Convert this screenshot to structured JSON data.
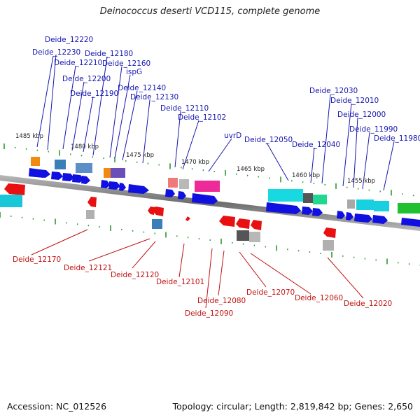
{
  "title": "Deinococcus deserti VCD115, complete genome",
  "accession_text": "Accession: NC_012526",
  "topology_text": "Topology: circular; Length: 2,819,842 bp; Genes: 2,650",
  "colors": {
    "top_label": "#1515b0",
    "bottom_label": "#c01010",
    "forward_gene": "#1010e0",
    "reverse_gene": "#e81010",
    "ruler_tick": "#2a9a2a",
    "backbone": "#8c8c8c"
  },
  "ruler_labels": [
    "1485 kbp",
    "1480 kbp",
    "1475 kbp",
    "1470 kbp",
    "1465 kbp",
    "1460 kbp",
    "1455 kbp"
  ],
  "top_labels": [
    "Deide_12220",
    "Deide_12230",
    "Deide_12180",
    "Deide_12210",
    "Deide_12160",
    "ispG",
    "Deide_12200",
    "Deide_12190",
    "Deide_12140",
    "Deide_12130",
    "Deide_12110",
    "Deide_12102",
    "uvrD",
    "Deide_12050",
    "Deide_12040",
    "Deide_12030",
    "Deide_12010",
    "Deide_12000",
    "Deide_11990",
    "Deide_11980"
  ],
  "bottom_labels": [
    "Deide_12170",
    "Deide_12121",
    "Deide_12120",
    "Deide_12101",
    "Deide_12080",
    "Deide_12090",
    "Deide_12070",
    "Deide_12060",
    "Deide_12020"
  ]
}
